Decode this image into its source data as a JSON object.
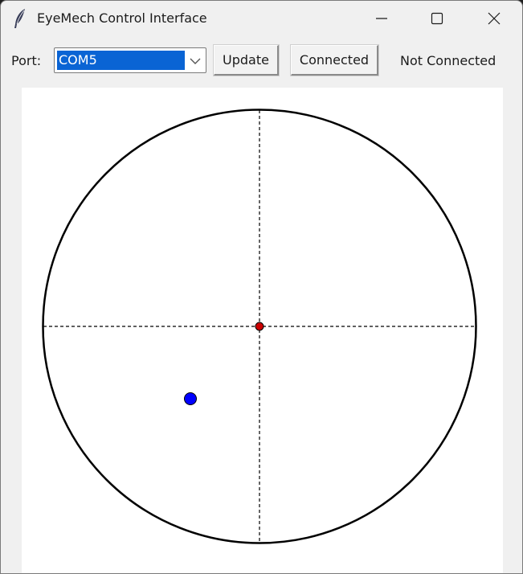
{
  "window": {
    "title": "EyeMech Control Interface",
    "icon": "feather-icon"
  },
  "toolbar": {
    "port_label": "Port:",
    "port_value": "COM5",
    "update_label": "Update",
    "connect_label": "Connected",
    "status_text": "Not Connected"
  },
  "colors": {
    "selection": "#0a64d4",
    "center_dot": "#cc0000",
    "position_dot": "#0000ff",
    "circle_stroke": "#000000"
  }
}
